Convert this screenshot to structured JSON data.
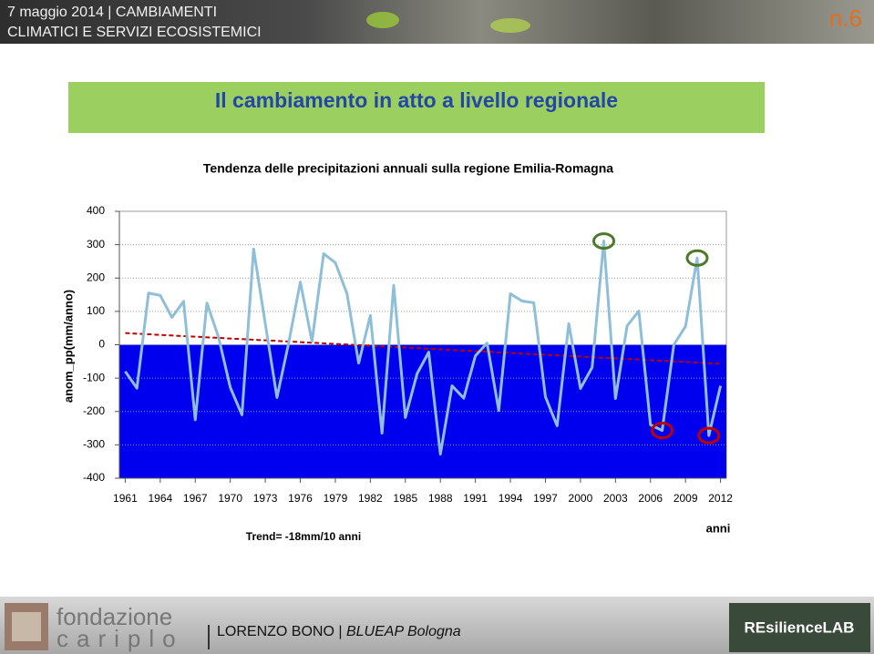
{
  "header": {
    "line1": "7 maggio 2014 | CAMBIAMENTI",
    "line2": "CLIMATICI E SERVIZI ECOSISTEMICI",
    "slide_number": "n.6"
  },
  "slide_title": "Il cambiamento in atto a livello regionale",
  "chart_data": {
    "type": "line",
    "title": "Tendenza  delle precipitazioni annuali sulla regione Emilia-Romagna",
    "y_label": "anom_pp(mm/anno)",
    "x_label": "anni",
    "annotation": "Trend= -18mm/10 anni",
    "x": [
      1961,
      1962,
      1963,
      1964,
      1965,
      1966,
      1967,
      1968,
      1969,
      1970,
      1971,
      1972,
      1973,
      1974,
      1975,
      1976,
      1977,
      1978,
      1979,
      1980,
      1981,
      1982,
      1983,
      1984,
      1985,
      1986,
      1987,
      1988,
      1989,
      1990,
      1991,
      1992,
      1993,
      1994,
      1995,
      1996,
      1997,
      1998,
      1999,
      2000,
      2001,
      2002,
      2003,
      2004,
      2005,
      2006,
      2007,
      2008,
      2009,
      2010,
      2011,
      2012
    ],
    "values": [
      -80,
      -130,
      155,
      148,
      82,
      130,
      -225,
      125,
      22,
      -128,
      -210,
      287,
      63,
      -158,
      5,
      188,
      10,
      273,
      246,
      153,
      -55,
      88,
      -265,
      178,
      -218,
      -87,
      -22,
      -328,
      -123,
      -160,
      -33,
      5,
      -197,
      153,
      131,
      126,
      -156,
      -243,
      63,
      -131,
      -68,
      311,
      -161,
      57,
      101,
      -240,
      -257,
      0,
      55,
      260,
      -272,
      -123
    ],
    "color": "#8fbfd8",
    "trend": {
      "x": [
        1961,
        2012
      ],
      "values": [
        35,
        -57
      ],
      "color": "#c00000"
    },
    "highlights": [
      {
        "x": 2002,
        "color": "#4a7a2a"
      },
      {
        "x": 2010,
        "color": "#4a7a2a"
      },
      {
        "x": 2007,
        "color": "#c00000"
      },
      {
        "x": 2011,
        "color": "#c00000"
      }
    ],
    "negative_fill": "#0000ee",
    "xlim": [
      1960.5,
      2012.5
    ],
    "xticks": [
      1961,
      1964,
      1967,
      1970,
      1973,
      1976,
      1979,
      1982,
      1985,
      1988,
      1991,
      1994,
      1997,
      2000,
      2003,
      2006,
      2009,
      2012
    ],
    "ylim": [
      -400,
      400
    ],
    "yticks": [
      -400,
      -300,
      -200,
      -100,
      0,
      100,
      200,
      300,
      400
    ],
    "grid": true
  },
  "footer": {
    "logo_top": "fondazione",
    "logo_bottom": "cariplo",
    "author": "LORENZO BONO",
    "separator": "|",
    "org": "BLUEAP Bologna",
    "right_logo": "REsilienceLAB"
  }
}
